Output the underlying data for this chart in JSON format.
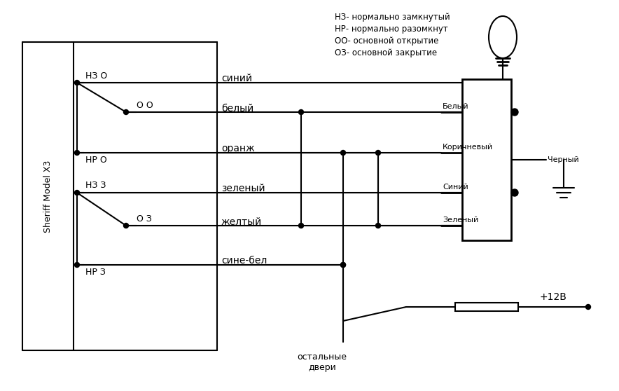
{
  "bg_color": "#ffffff",
  "legend_text": "НЗ- нормально замкнутый\nНР- нормально разомкнут\nОО- основной открытие\nОЗ- основной закрытие",
  "sheriff_label": "Sheriff Model X3",
  "connector_labels": [
    "Белый",
    "Коричневый",
    "Синий",
    "Зеленый"
  ],
  "black_label": "Черный",
  "plus12_label": "+12В",
  "door_label": "остальные\nдвери",
  "wire_names": [
    "синий",
    "белый",
    "оранж",
    "зеленый",
    "желтый",
    "сине-бел"
  ],
  "switch_labels": [
    "НЗ О",
    "О О",
    "НР О",
    "НЗ З",
    "О З",
    "НР З"
  ]
}
